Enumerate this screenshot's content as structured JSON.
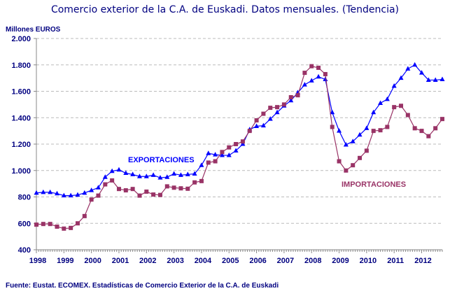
{
  "chart_data": {
    "type": "line",
    "title": "Comercio exterior de la C.A. de Euskadi. Datos mensuales. (Tendencia)",
    "ylabel": "Millones EUROS",
    "xlabel": "",
    "source": "Fuente: Eustat. ECOMEX. Estadísticas de Comercio Exterior de la C.A. de Euskadi",
    "ylim": [
      400,
      2000
    ],
    "yticks": [
      400,
      600,
      800,
      1000,
      1200,
      1400,
      1600,
      1800,
      2000
    ],
    "ytick_labels": [
      "400",
      "600",
      "800",
      "1.000",
      "1.200",
      "1.400",
      "1.600",
      "1.800",
      "2.000"
    ],
    "xlim": [
      "1998-01",
      "2012-10"
    ],
    "xtick_labels": [
      "1998",
      "1999",
      "2000",
      "2001",
      "2002",
      "2003",
      "2004",
      "2005",
      "2006",
      "2007",
      "2008",
      "2009",
      "2010",
      "2011",
      "2012"
    ],
    "grid": "horizontal dashed",
    "x": [
      "1998-01",
      "1998-04",
      "1998-07",
      "1998-10",
      "1999-01",
      "1999-04",
      "1999-07",
      "1999-10",
      "2000-01",
      "2000-04",
      "2000-07",
      "2000-10",
      "2001-01",
      "2001-04",
      "2001-07",
      "2001-10",
      "2002-01",
      "2002-04",
      "2002-07",
      "2002-10",
      "2003-01",
      "2003-04",
      "2003-07",
      "2003-10",
      "2004-01",
      "2004-04",
      "2004-07",
      "2004-10",
      "2005-01",
      "2005-04",
      "2005-07",
      "2005-10",
      "2006-01",
      "2006-04",
      "2006-07",
      "2006-10",
      "2007-01",
      "2007-04",
      "2007-07",
      "2007-10",
      "2008-01",
      "2008-04",
      "2008-07",
      "2008-10",
      "2009-01",
      "2009-04",
      "2009-07",
      "2009-10",
      "2010-01",
      "2010-04",
      "2010-07",
      "2010-10",
      "2011-01",
      "2011-04",
      "2011-07",
      "2011-10",
      "2012-01",
      "2012-04",
      "2012-07",
      "2012-10"
    ],
    "series": [
      {
        "name": "EXPORTACIONES",
        "color": "#0000ff",
        "marker": "triangle",
        "values": [
          830,
          835,
          835,
          825,
          810,
          810,
          815,
          830,
          850,
          870,
          950,
          995,
          1005,
          980,
          970,
          955,
          955,
          965,
          945,
          950,
          975,
          965,
          970,
          975,
          1040,
          1130,
          1120,
          1115,
          1115,
          1150,
          1200,
          1310,
          1335,
          1340,
          1390,
          1440,
          1490,
          1530,
          1590,
          1650,
          1680,
          1710,
          1690,
          1440,
          1300,
          1195,
          1220,
          1270,
          1320,
          1440,
          1510,
          1540,
          1640,
          1700,
          1770,
          1800,
          1740,
          1685,
          1685,
          1690
        ]
      },
      {
        "name": "IMPORTACIONES",
        "color": "#993366",
        "marker": "square",
        "values": [
          590,
          595,
          595,
          575,
          560,
          565,
          600,
          655,
          780,
          810,
          895,
          925,
          860,
          850,
          860,
          810,
          840,
          818,
          815,
          880,
          870,
          865,
          862,
          910,
          920,
          1060,
          1070,
          1140,
          1175,
          1200,
          1220,
          1300,
          1380,
          1430,
          1475,
          1480,
          1500,
          1555,
          1570,
          1740,
          1790,
          1778,
          1730,
          1330,
          1070,
          1000,
          1040,
          1095,
          1150,
          1300,
          1305,
          1330,
          1480,
          1490,
          1420,
          1320,
          1300,
          1260,
          1320,
          1390
        ]
      }
    ]
  }
}
